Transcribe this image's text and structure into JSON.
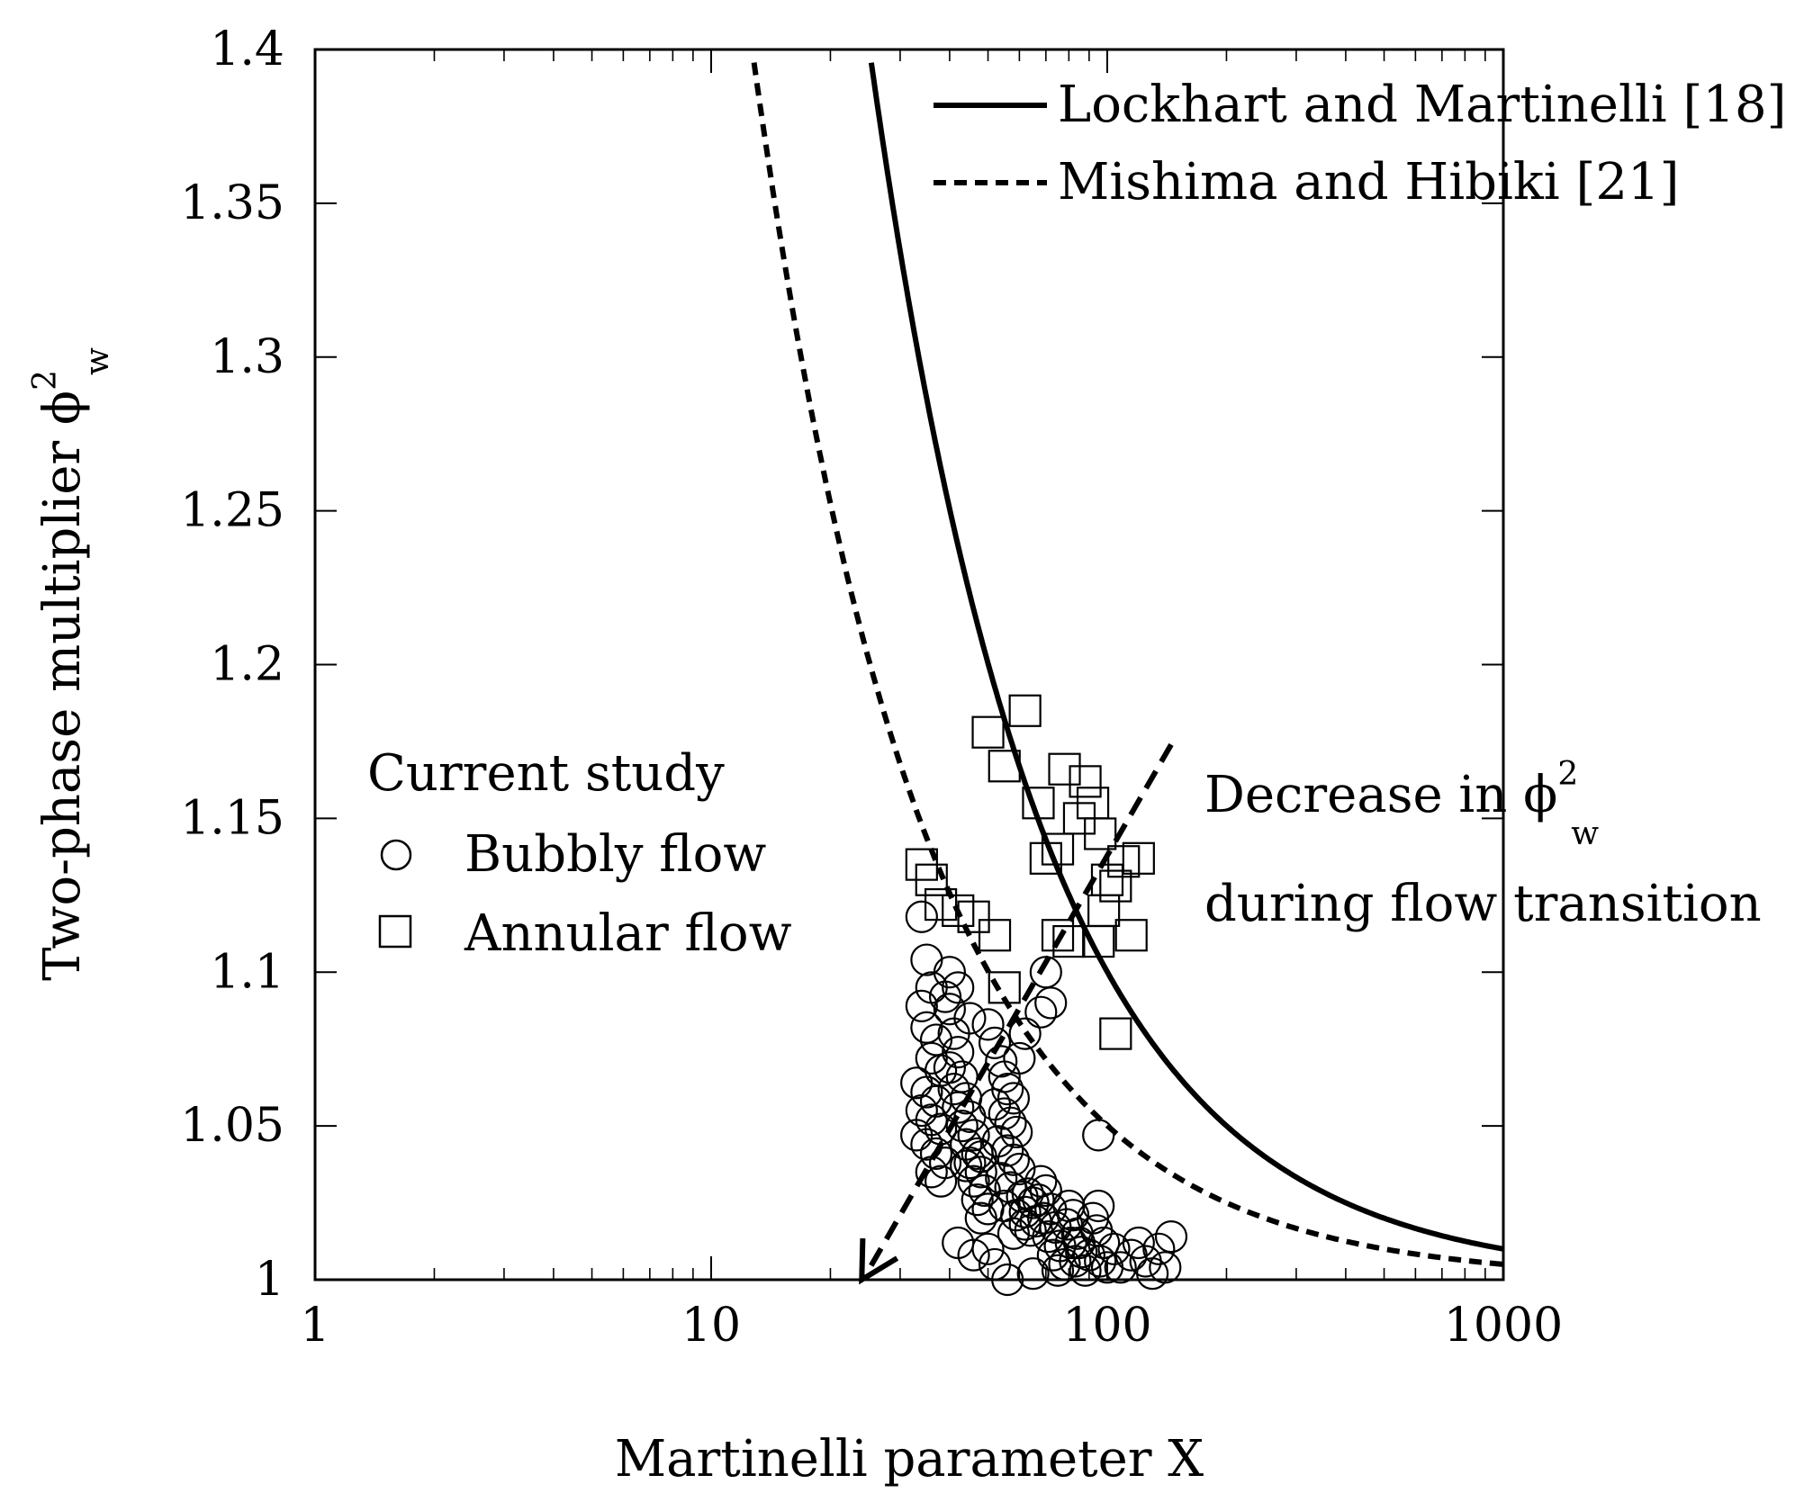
{
  "chart_data": {
    "type": "scatter",
    "title": "",
    "xlabel": "Martinelli parameter X",
    "ylabel": {
      "main": "Two-phase multiplier ϕ",
      "sup": "2",
      "sub": "w"
    },
    "xscale": "log",
    "xlim": [
      1,
      1000
    ],
    "ylim": [
      1,
      1.4
    ],
    "x_ticks": [
      1,
      10,
      100,
      1000
    ],
    "x_tick_labels": [
      "1",
      "10",
      "100",
      "1000"
    ],
    "y_ticks": [
      1,
      1.05,
      1.1,
      1.15,
      1.2,
      1.25,
      1.3,
      1.35,
      1.4
    ],
    "y_tick_labels": [
      "1",
      "1.05",
      "1.1",
      "1.15",
      "1.2",
      "1.25",
      "1.3",
      "1.35",
      "1.4"
    ],
    "curves": [
      {
        "name": "Lockhart and Martinelli [18]",
        "style": "solid",
        "model": "1 + C/X + 1/X^2",
        "C": 10,
        "x_range": [
          24.6,
          1000
        ]
      },
      {
        "name": "Mishima and Hibiki [21]",
        "style": "dashed",
        "model": "1 + C/X + 1/X^2",
        "C": 5,
        "x_range": [
          12.6,
          1000
        ]
      }
    ],
    "legend": {
      "position": "top-right",
      "entries": [
        "Lockhart and Martinelli [18]",
        "Mishima and Hibiki [21]"
      ]
    },
    "scatter_legend": {
      "title": "Current study",
      "entries": [
        {
          "label": "Bubbly flow",
          "marker": "circle"
        },
        {
          "label": "Annular flow",
          "marker": "square"
        }
      ]
    },
    "series": [
      {
        "name": "Bubbly flow",
        "marker": "circle",
        "points": [
          [
            34,
            1.118
          ],
          [
            35,
            1.104
          ],
          [
            36,
            1.095
          ],
          [
            34,
            1.089
          ],
          [
            35,
            1.082
          ],
          [
            37,
            1.078
          ],
          [
            36,
            1.072
          ],
          [
            38,
            1.068
          ],
          [
            33,
            1.064
          ],
          [
            35,
            1.061
          ],
          [
            37,
            1.058
          ],
          [
            34,
            1.055
          ],
          [
            36,
            1.052
          ],
          [
            38,
            1.049
          ],
          [
            33,
            1.047
          ],
          [
            35,
            1.044
          ],
          [
            37,
            1.041
          ],
          [
            39,
            1.038
          ],
          [
            36,
            1.035
          ],
          [
            38,
            1.032
          ],
          [
            40,
            1.088
          ],
          [
            41,
            1.08
          ],
          [
            42,
            1.074
          ],
          [
            40,
            1.069
          ],
          [
            43,
            1.066
          ],
          [
            41,
            1.062
          ],
          [
            44,
            1.059
          ],
          [
            42,
            1.056
          ],
          [
            45,
            1.053
          ],
          [
            43,
            1.05
          ],
          [
            46,
            1.047
          ],
          [
            44,
            1.044
          ],
          [
            47,
            1.041
          ],
          [
            45,
            1.038
          ],
          [
            48,
            1.035
          ],
          [
            46,
            1.032
          ],
          [
            49,
            1.029
          ],
          [
            47,
            1.026
          ],
          [
            50,
            1.023
          ],
          [
            48,
            1.02
          ],
          [
            40,
            1.1
          ],
          [
            42,
            1.095
          ],
          [
            39,
            1.092
          ],
          [
            45,
            1.085
          ],
          [
            50,
            1.083
          ],
          [
            52,
            1.077
          ],
          [
            54,
            1.071
          ],
          [
            55,
            1.066
          ],
          [
            56,
            1.062
          ],
          [
            58,
            1.059
          ],
          [
            52,
            1.057
          ],
          [
            55,
            1.054
          ],
          [
            57,
            1.051
          ],
          [
            59,
            1.048
          ],
          [
            53,
            1.045
          ],
          [
            56,
            1.042
          ],
          [
            58,
            1.039
          ],
          [
            60,
            1.036
          ],
          [
            54,
            1.033
          ],
          [
            57,
            1.03
          ],
          [
            61,
            1.027
          ],
          [
            55,
            1.024
          ],
          [
            59,
            1.021
          ],
          [
            62,
            1.018
          ],
          [
            58,
            1.015
          ],
          [
            63,
            1.028
          ],
          [
            65,
            1.025
          ],
          [
            62,
            1.022
          ],
          [
            66,
            1.019
          ],
          [
            64,
            1.016
          ],
          [
            68,
            1.032
          ],
          [
            70,
            1.029
          ],
          [
            67,
            1.026
          ],
          [
            72,
            1.023
          ],
          [
            69,
            1.02
          ],
          [
            74,
            1.017
          ],
          [
            71,
            1.014
          ],
          [
            76,
            1.011
          ],
          [
            73,
            1.008
          ],
          [
            78,
            1.005
          ],
          [
            80,
            1.024
          ],
          [
            82,
            1.021
          ],
          [
            79,
            1.018
          ],
          [
            84,
            1.015
          ],
          [
            81,
            1.012
          ],
          [
            86,
            1.009
          ],
          [
            83,
            1.006
          ],
          [
            88,
            1.003
          ],
          [
            85,
            1.012
          ],
          [
            90,
            1.008
          ],
          [
            92,
            1.02
          ],
          [
            95,
            1.024
          ],
          [
            94,
            1.016
          ],
          [
            98,
            1.012
          ],
          [
            96,
            1.006
          ],
          [
            100,
            1.004
          ],
          [
            104,
            1.01
          ],
          [
            108,
            1.004
          ],
          [
            115,
            1.008
          ],
          [
            120,
            1.012
          ],
          [
            125,
            1.006
          ],
          [
            130,
            1.002
          ],
          [
            135,
            1.01
          ],
          [
            140,
            1.004
          ],
          [
            145,
            1.014
          ],
          [
            65,
            1.002
          ],
          [
            75,
            1.003
          ],
          [
            70,
            1.1
          ],
          [
            72,
            1.09
          ],
          [
            68,
            1.087
          ],
          [
            95,
            1.047
          ],
          [
            62,
            1.08
          ],
          [
            60,
            1.072
          ],
          [
            48,
            1.04
          ],
          [
            44,
            1.037
          ],
          [
            50,
            1.01
          ],
          [
            52,
            1.005
          ],
          [
            46,
            1.008
          ],
          [
            42,
            1.012
          ],
          [
            56,
            1.0
          ]
        ]
      },
      {
        "name": "Annular flow",
        "marker": "square",
        "points": [
          [
            62,
            1.185
          ],
          [
            50,
            1.178
          ],
          [
            55,
            1.167
          ],
          [
            78,
            1.166
          ],
          [
            88,
            1.162
          ],
          [
            67,
            1.155
          ],
          [
            92,
            1.155
          ],
          [
            85,
            1.15
          ],
          [
            96,
            1.145
          ],
          [
            75,
            1.14
          ],
          [
            70,
            1.137
          ],
          [
            120,
            1.137
          ],
          [
            110,
            1.136
          ],
          [
            34,
            1.135
          ],
          [
            36,
            1.13
          ],
          [
            100,
            1.13
          ],
          [
            38,
            1.122
          ],
          [
            105,
            1.128
          ],
          [
            42,
            1.12
          ],
          [
            46,
            1.118
          ],
          [
            98,
            1.12
          ],
          [
            52,
            1.112
          ],
          [
            75,
            1.112
          ],
          [
            80,
            1.11
          ],
          [
            95,
            1.11
          ],
          [
            115,
            1.112
          ],
          [
            55,
            1.095
          ],
          [
            105,
            1.08
          ]
        ]
      }
    ],
    "annotation": {
      "line1": "Decrease in ϕ",
      "line1_sup": "2",
      "line1_sub": "w",
      "line2": "during flow transition",
      "arrow_from": [
        145,
        1.174
      ],
      "arrow_to": [
        24,
        1.0
      ]
    }
  }
}
